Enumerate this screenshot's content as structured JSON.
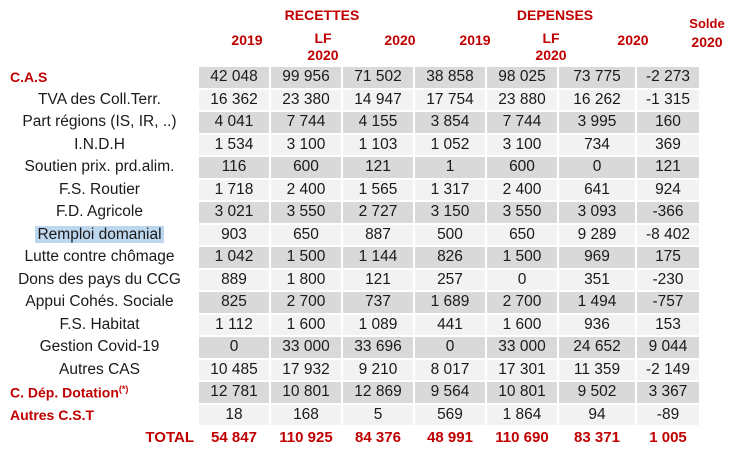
{
  "headers": {
    "recettes": "RECETTES",
    "depenses": "DEPENSES",
    "solde": "Solde",
    "solde_year": "2020",
    "cols": [
      {
        "line1": "",
        "line2": "2019"
      },
      {
        "line1": "LF",
        "line2": "2020"
      },
      {
        "line1": "",
        "line2": "2020"
      },
      {
        "line1": "",
        "line2": "2019"
      },
      {
        "line1": "LF",
        "line2": "2020"
      },
      {
        "line1": "",
        "line2": "2020"
      }
    ]
  },
  "rows": [
    {
      "label": "C.A.S",
      "values": [
        "42 048",
        "99 956",
        "71 502",
        "38 858",
        "98 025",
        "73 775"
      ],
      "solde": "-2 273"
    },
    {
      "label": "TVA des Coll.Terr.",
      "values": [
        "16 362",
        "23 380",
        "14 947",
        "17 754",
        "23 880",
        "16 262"
      ],
      "solde": "-1 315"
    },
    {
      "label": "Part régions (IS, IR, ..)",
      "values": [
        "4 041",
        "7 744",
        "4 155",
        "3 854",
        "7 744",
        "3 995"
      ],
      "solde": "160"
    },
    {
      "label": "I.N.D.H",
      "values": [
        "1 534",
        "3 100",
        "1 103",
        "1 052",
        "3 100",
        "734"
      ],
      "solde": "369"
    },
    {
      "label": "Soutien prix. prd.alim.",
      "values": [
        "116",
        "600",
        "121",
        "1",
        "600",
        "0"
      ],
      "solde": "121"
    },
    {
      "label": "F.S. Routier",
      "values": [
        "1 718",
        "2 400",
        "1 565",
        "1 317",
        "2 400",
        "641"
      ],
      "solde": "924"
    },
    {
      "label": "F.D. Agricole",
      "values": [
        "3 021",
        "3 550",
        "2 727",
        "3 150",
        "3 550",
        "3 093"
      ],
      "solde": "-366"
    },
    {
      "label": "Remploi domanial",
      "values": [
        "903",
        "650",
        "887",
        "500",
        "650",
        "9 289"
      ],
      "solde": "-8 402"
    },
    {
      "label": "Lutte contre chômage",
      "values": [
        "1 042",
        "1 500",
        "1 144",
        "826",
        "1 500",
        "969"
      ],
      "solde": "175"
    },
    {
      "label": "Dons des pays du CCG",
      "values": [
        "889",
        "1 800",
        "121",
        "257",
        "0",
        "351"
      ],
      "solde": "-230"
    },
    {
      "label": "Appui Cohés. Sociale",
      "values": [
        "825",
        "2 700",
        "737",
        "1 689",
        "2 700",
        "1 494"
      ],
      "solde": "-757"
    },
    {
      "label": "F.S. Habitat",
      "values": [
        "1 112",
        "1 600",
        "1 089",
        "441",
        "1 600",
        "936"
      ],
      "solde": "153"
    },
    {
      "label": "Gestion Covid-19",
      "values": [
        "0",
        "33 000",
        "33 696",
        "0",
        "33 000",
        "24 652"
      ],
      "solde": "9 044"
    },
    {
      "label": "Autres CAS",
      "values": [
        "10 485",
        "17 932",
        "9 210",
        "8 017",
        "17 301",
        "11 359"
      ],
      "solde": "-2 149"
    },
    {
      "label": "C. Dép. Dotation",
      "sup": "(*)",
      "values": [
        "12 781",
        "10 801",
        "12 869",
        "9 564",
        "10 801",
        "9 502"
      ],
      "solde": "3 367"
    },
    {
      "label": "Autres C.S.T",
      "values": [
        "18",
        "168",
        "5",
        "569",
        "1 864",
        "94"
      ],
      "solde": "-89"
    },
    {
      "label": "TOTAL",
      "values": [
        "54 847",
        "110 925",
        "84 376",
        "48 991",
        "110 690",
        "83 371"
      ],
      "solde": "1 005"
    }
  ]
}
